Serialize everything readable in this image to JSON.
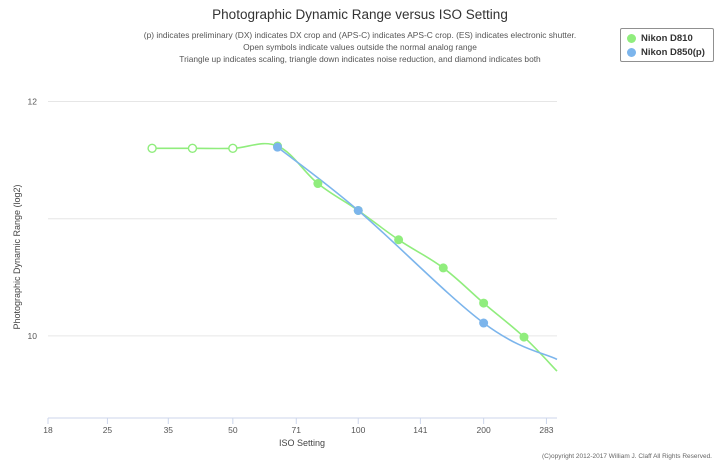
{
  "chart_data": {
    "type": "line",
    "title": "Photographic Dynamic Range versus ISO Setting",
    "subtitle_lines": [
      "(p) indicates preliminary (DX) indicates DX crop and (APS-C) indicates APS-C crop. (ES) indicates electronic shutter.",
      "Open symbols indicate values outside the normal analog range",
      "Triangle up indicates scaling, triangle down indicates noise reduction, and diamond indicates both"
    ],
    "xlabel": "ISO Setting",
    "ylabel": "Photographic Dynamic Range (log2)",
    "x_scale": "log2",
    "xlim": [
      18,
      300
    ],
    "ylim": [
      9.3,
      12.2
    ],
    "x_ticks": [
      "18",
      "25",
      "35",
      "50",
      "71",
      "100",
      "141",
      "200",
      "283"
    ],
    "y_ticks": [
      "10",
      "12"
    ],
    "grid": "horizontal",
    "legend_position": "top-right",
    "series": [
      {
        "name": "Nikon D810",
        "color": "#90ed7d",
        "points": [
          {
            "x": 32,
            "y": 11.6,
            "open": true
          },
          {
            "x": 40,
            "y": 11.6,
            "open": true
          },
          {
            "x": 50,
            "y": 11.6,
            "open": true
          },
          {
            "x": 64,
            "y": 11.62,
            "open": false
          },
          {
            "x": 80,
            "y": 11.3,
            "open": false
          },
          {
            "x": 100,
            "y": 11.07,
            "open": false
          },
          {
            "x": 125,
            "y": 10.82,
            "open": false
          },
          {
            "x": 160,
            "y": 10.58,
            "open": false
          },
          {
            "x": 200,
            "y": 10.28,
            "open": false
          },
          {
            "x": 250,
            "y": 9.99,
            "open": false
          },
          {
            "x": 300,
            "y": 9.7,
            "open": false,
            "marker": false
          }
        ]
      },
      {
        "name": "Nikon D850(p)",
        "color": "#7cb5ec",
        "points": [
          {
            "x": 64,
            "y": 11.61,
            "open": false
          },
          {
            "x": 100,
            "y": 11.07,
            "open": false
          },
          {
            "x": 200,
            "y": 10.11,
            "open": false
          },
          {
            "x": 300,
            "y": 9.8,
            "open": false,
            "marker": false
          }
        ]
      }
    ]
  },
  "credits": "(C)opyright 2012-2017 William J. Claff All Rights Reserved."
}
